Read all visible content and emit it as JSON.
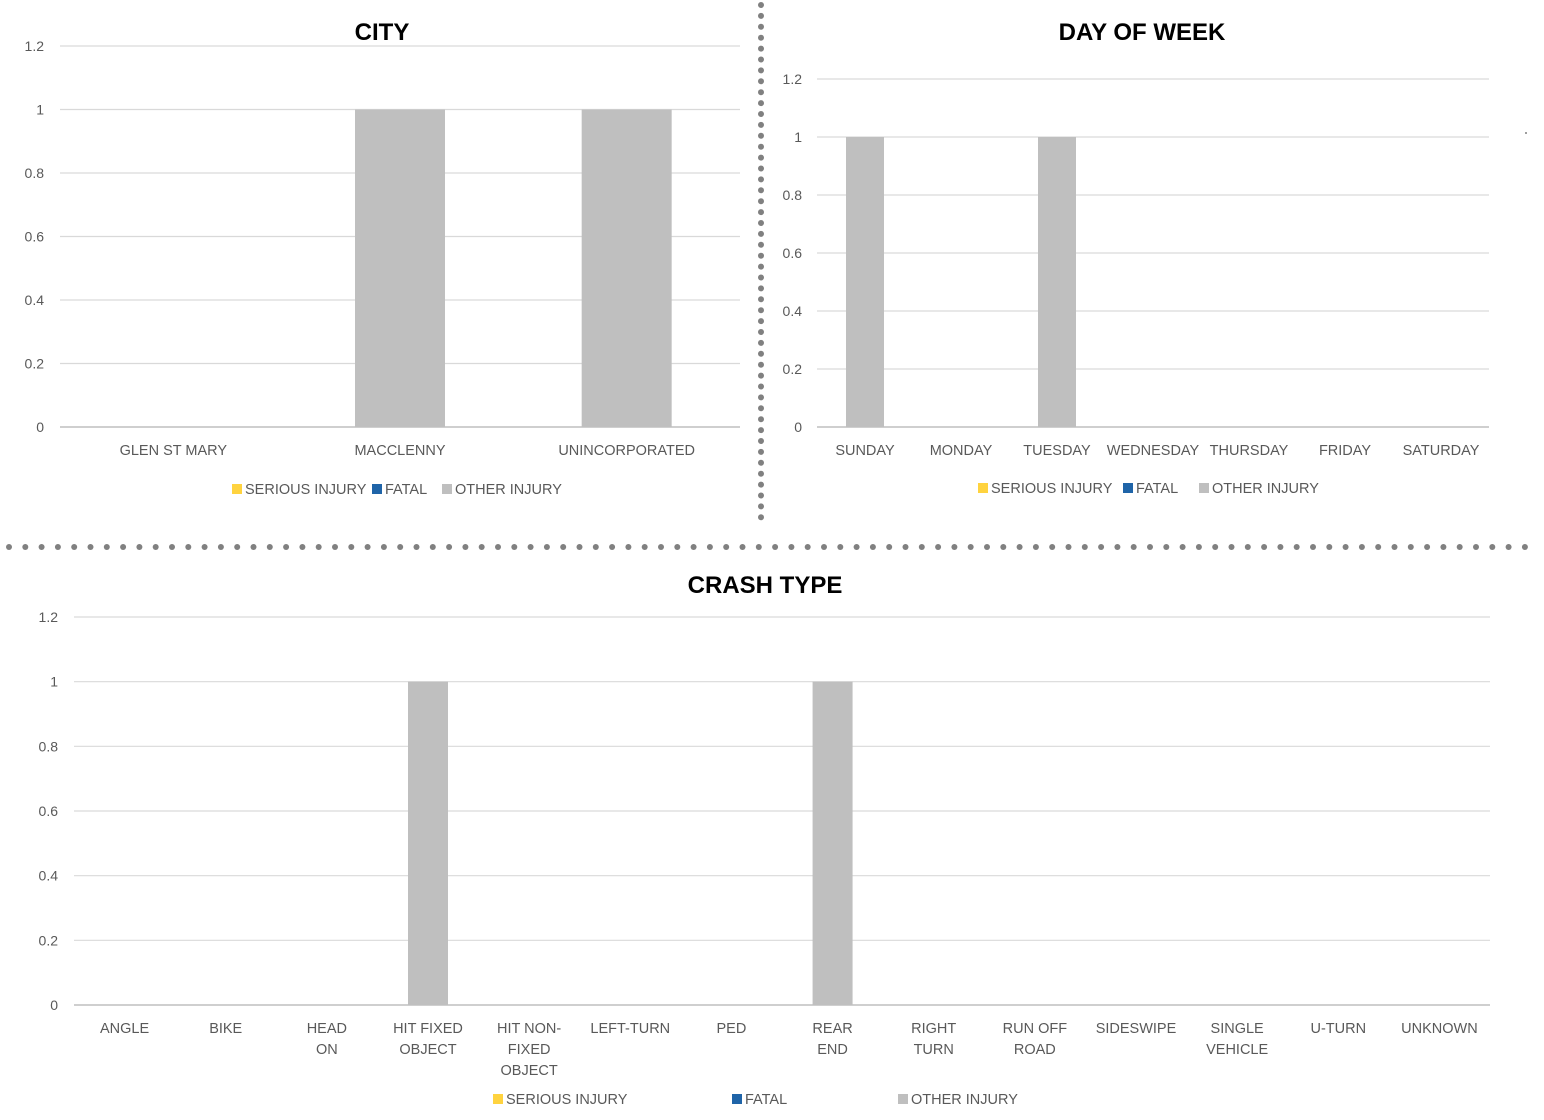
{
  "colors": {
    "serious_injury": "#ffd33f",
    "fatal": "#1f64a8",
    "other_injury": "#bfbfbf",
    "separator": "#808080"
  },
  "chart_data": [
    {
      "id": "city",
      "type": "bar",
      "title": "CITY",
      "categories": [
        "GLEN ST MARY",
        "MACCLENNY",
        "UNINCORPORATED"
      ],
      "series": [
        {
          "name": "SERIOUS INJURY",
          "values": [
            0,
            0,
            0
          ]
        },
        {
          "name": "FATAL",
          "values": [
            0,
            0,
            0
          ]
        },
        {
          "name": "OTHER INJURY",
          "values": [
            0,
            1,
            1
          ]
        }
      ],
      "y_ticks": [
        "0",
        "0.2",
        "0.4",
        "0.6",
        "0.8",
        "1",
        "1.2"
      ],
      "ylim": [
        0,
        1.2
      ],
      "grid": true,
      "legend": "bottom"
    },
    {
      "id": "day-of-week",
      "type": "bar",
      "title": "DAY OF WEEK",
      "categories": [
        "SUNDAY",
        "MONDAY",
        "TUESDAY",
        "WEDNESDAY",
        "THURSDAY",
        "FRIDAY",
        "SATURDAY"
      ],
      "series": [
        {
          "name": "SERIOUS INJURY",
          "values": [
            0,
            0,
            0,
            0,
            0,
            0,
            0
          ]
        },
        {
          "name": "FATAL",
          "values": [
            0,
            0,
            0,
            0,
            0,
            0,
            0
          ]
        },
        {
          "name": "OTHER INJURY",
          "values": [
            1,
            0,
            1,
            0,
            0,
            0,
            0
          ]
        }
      ],
      "y_ticks": [
        "0",
        "0.2",
        "0.4",
        "0.6",
        "0.8",
        "1",
        "1.2"
      ],
      "ylim": [
        0,
        1.2
      ],
      "grid": true,
      "legend": "bottom"
    },
    {
      "id": "crash-type",
      "type": "bar",
      "title": "CRASH TYPE",
      "categories": [
        [
          "ANGLE"
        ],
        [
          "BIKE"
        ],
        [
          "HEAD",
          "ON"
        ],
        [
          "HIT FIXED",
          "OBJECT"
        ],
        [
          "HIT NON-",
          "FIXED",
          "OBJECT"
        ],
        [
          "LEFT-TURN"
        ],
        [
          "PED"
        ],
        [
          "REAR",
          "END"
        ],
        [
          "RIGHT",
          "TURN"
        ],
        [
          "RUN OFF",
          "ROAD"
        ],
        [
          "SIDESWIPE"
        ],
        [
          "SINGLE",
          "VEHICLE"
        ],
        [
          "U-TURN"
        ],
        [
          "UNKNOWN"
        ]
      ],
      "series": [
        {
          "name": "SERIOUS INJURY",
          "values": [
            0,
            0,
            0,
            0,
            0,
            0,
            0,
            0,
            0,
            0,
            0,
            0,
            0,
            0
          ]
        },
        {
          "name": "FATAL",
          "values": [
            0,
            0,
            0,
            0,
            0,
            0,
            0,
            0,
            0,
            0,
            0,
            0,
            0,
            0
          ]
        },
        {
          "name": "OTHER INJURY",
          "values": [
            0,
            0,
            0,
            1,
            0,
            0,
            0,
            1,
            0,
            0,
            0,
            0,
            0,
            0
          ]
        }
      ],
      "y_ticks": [
        "0",
        "0.2",
        "0.4",
        "0.6",
        "0.8",
        "1",
        "1.2"
      ],
      "ylim": [
        0,
        1.2
      ],
      "grid": true,
      "legend": "bottom"
    }
  ]
}
